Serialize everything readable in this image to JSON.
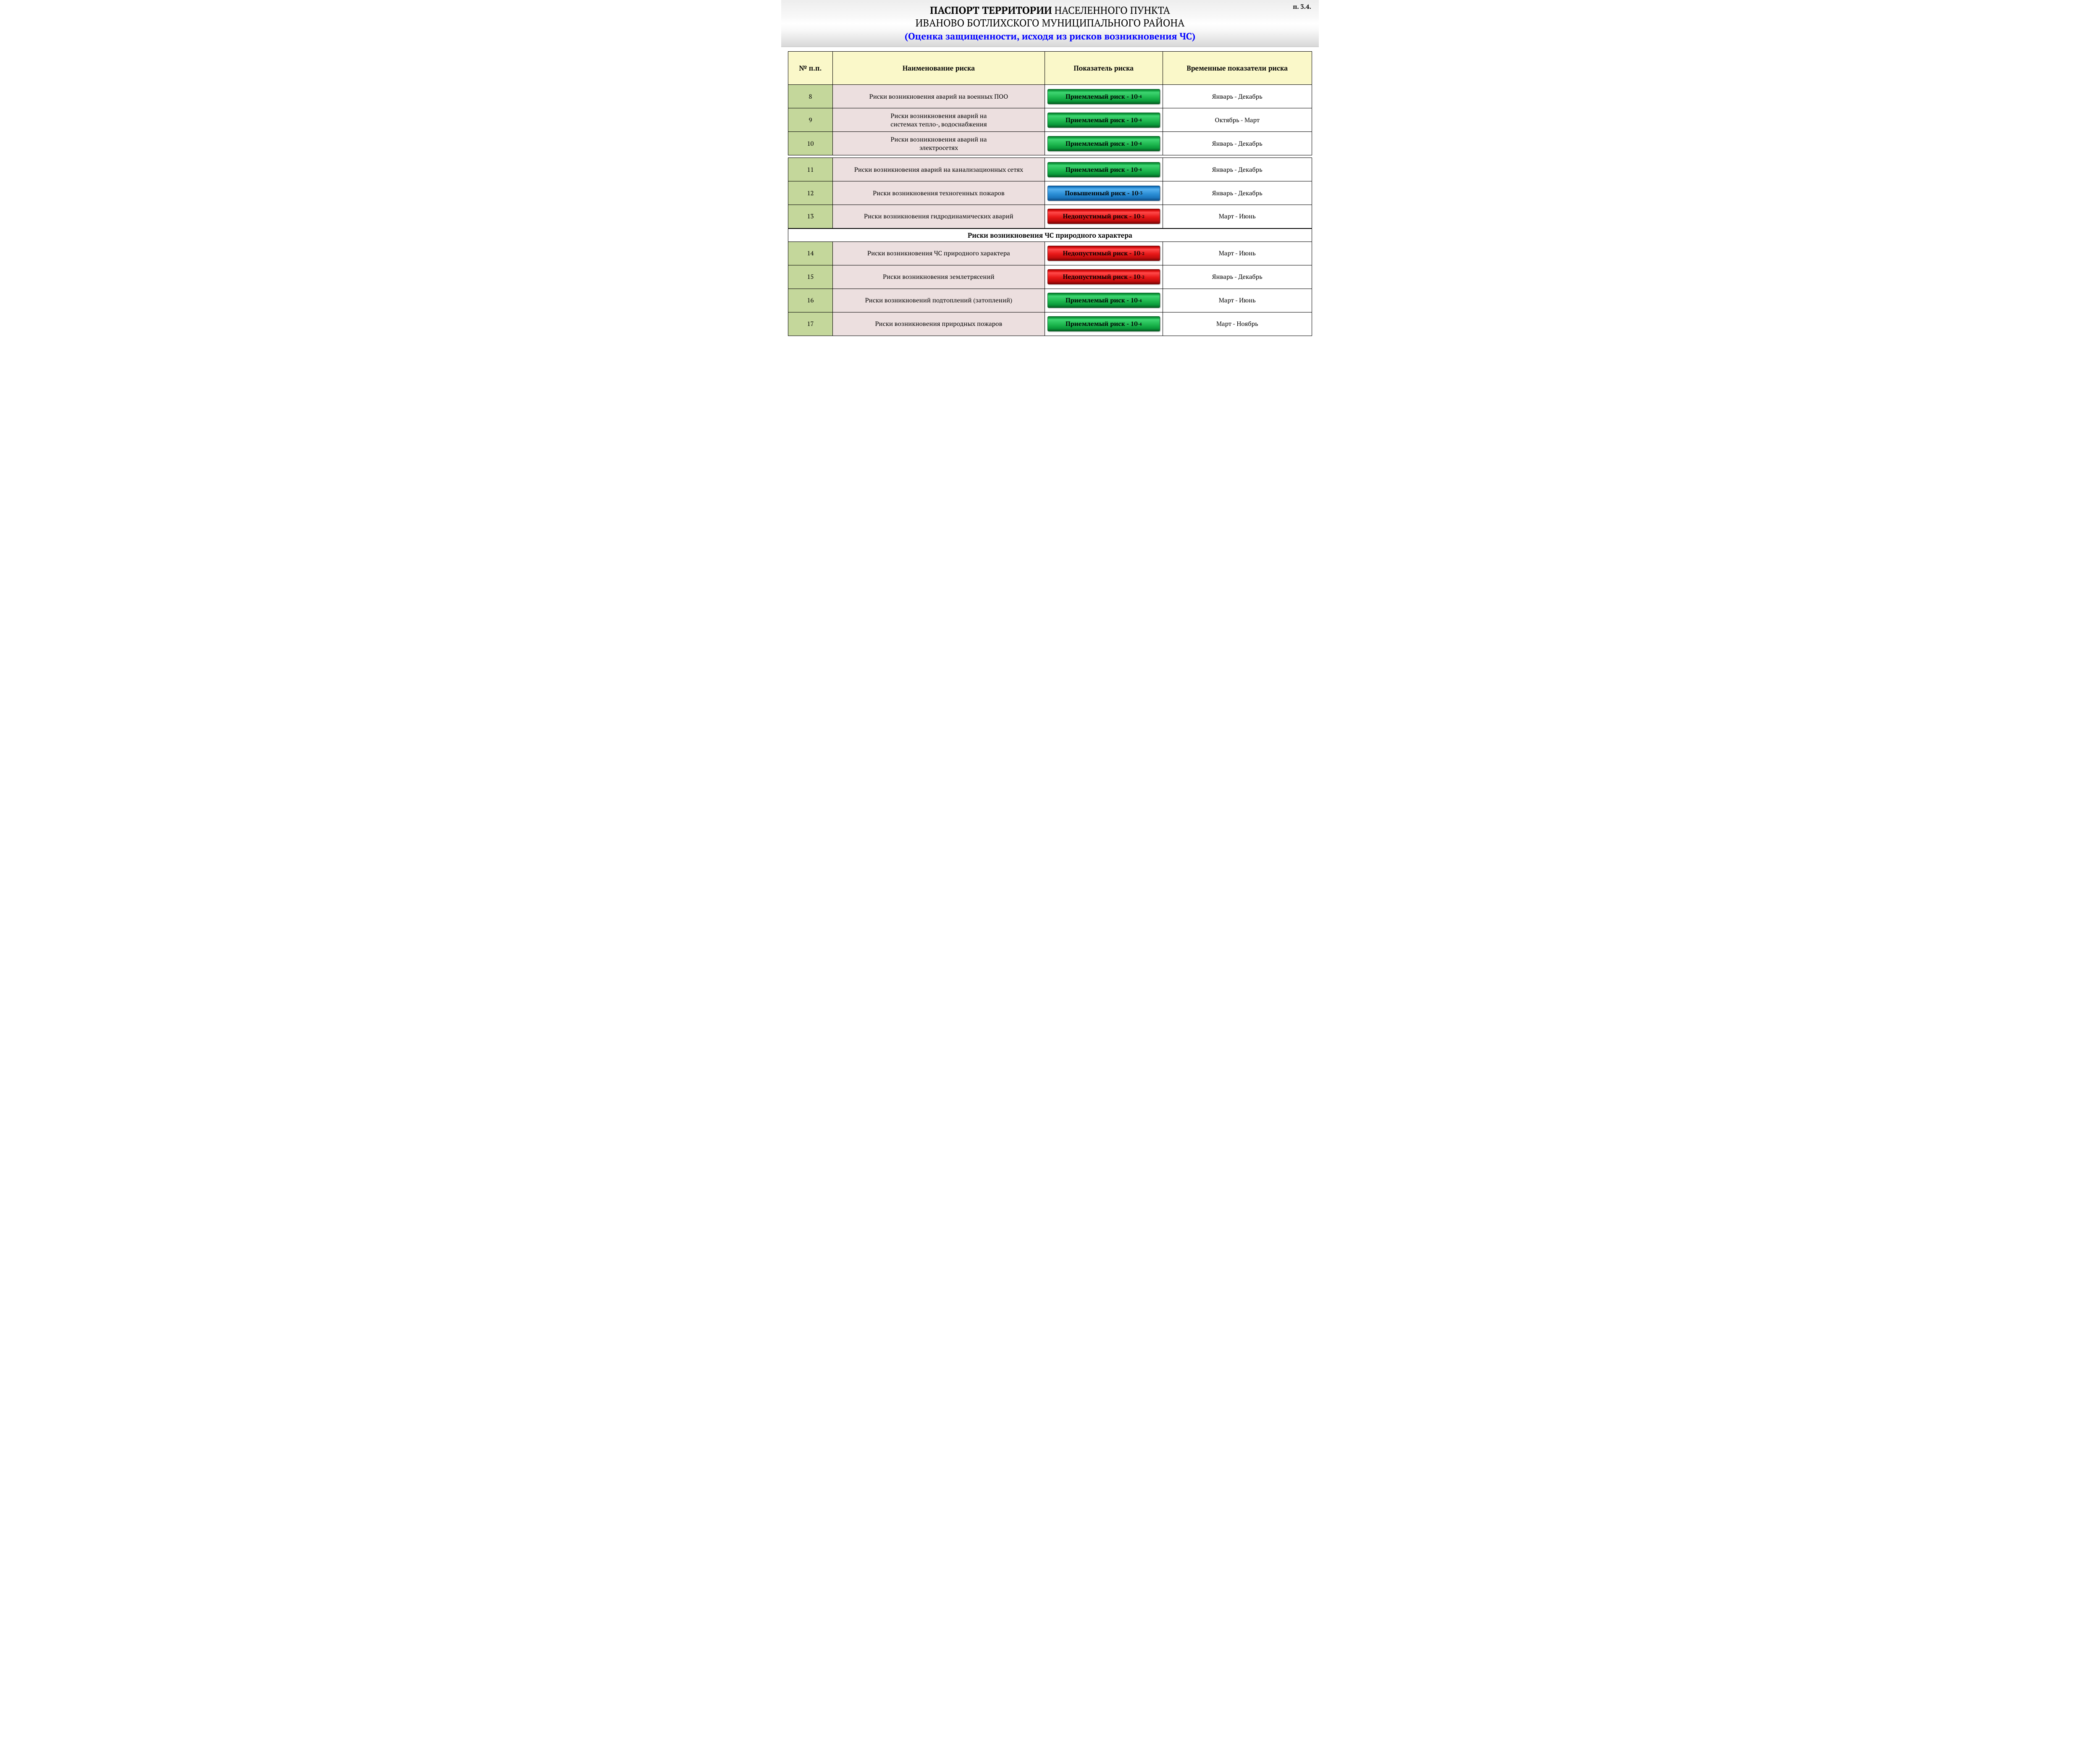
{
  "corner_label": "п. 3.4.",
  "title": {
    "line1_bold": "ПАСПОРТ ТЕРРИТОРИИ",
    "line1_rest": " НАСЕЛЕННОГО ПУНКТА",
    "line2": "ИВАНОВО  БОТЛИХСКОГО МУНИЦИПАЛЬНОГО РАЙОНА",
    "line3": "(Оценка защищенности, исходя из рисков возникновения ЧС)"
  },
  "headers": {
    "num": "№ п.п.",
    "name": "Наименование риска",
    "indicator": "Показатель риска",
    "time": "Временные показатели риска"
  },
  "badge_labels": {
    "acceptable_prefix": "Приемлемый  риск - 10",
    "elevated_prefix": "Повышенный  риск - 10",
    "unacceptable_prefix": "Недопустимый  риск - 10",
    "exp_acceptable": "-4",
    "exp_elevated": "-3",
    "exp_unacceptable": "-2"
  },
  "badge_colors": {
    "green": "#1eb84f",
    "blue": "#2c8fd6",
    "red": "#e81818"
  },
  "section_title": "Риски возникновения ЧС природного характера",
  "rows": [
    {
      "n": "8",
      "name_l1": "Риски возникновения аварий на военных ПОО",
      "name_l2": "",
      "badge": "green",
      "time": "Январь - Декабрь"
    },
    {
      "n": "9",
      "name_l1": "Риски возникновения аварий на",
      "name_l2": "системах тепло-, водоснабжения",
      "badge": "green",
      "time": "Октябрь - Март"
    },
    {
      "n": "10",
      "name_l1": "Риски возникновения аварий на",
      "name_l2": "электросетях",
      "badge": "green",
      "time": "Январь - Декабрь"
    },
    {
      "n": "11",
      "name_l1": "Риски возникновения аварий на канализационных сетях",
      "name_l2": "",
      "badge": "green",
      "time": "Январь - Декабрь"
    },
    {
      "n": "12",
      "name_l1": "Риски возникновения техногенных пожаров",
      "name_l2": "",
      "badge": "blue",
      "time": "Январь - Декабрь"
    },
    {
      "n": "13",
      "name_l1": "Риски возникновения гидродинамических аварий",
      "name_l2": "",
      "badge": "red",
      "time": "Март - Июнь"
    },
    {
      "n": "14",
      "name_l1": "Риски возникновения ЧС природного характера",
      "name_l2": "",
      "badge": "red",
      "time": "Март - Июнь",
      "vmid": true
    },
    {
      "n": "15",
      "name_l1": "Риски возникновения землетрясений",
      "name_l2": "",
      "badge": "red",
      "time": "Январь - Декабрь",
      "vmid": true
    },
    {
      "n": "16",
      "name_l1": "Риски возникновений подтоплений (затоплений)",
      "name_l2": "",
      "badge": "green",
      "time": "Март - Июнь"
    },
    {
      "n": "17",
      "name_l1": "Риски возникновения природных пожаров",
      "name_l2": "",
      "badge": "green",
      "time": "Март - Ноябрь"
    }
  ]
}
